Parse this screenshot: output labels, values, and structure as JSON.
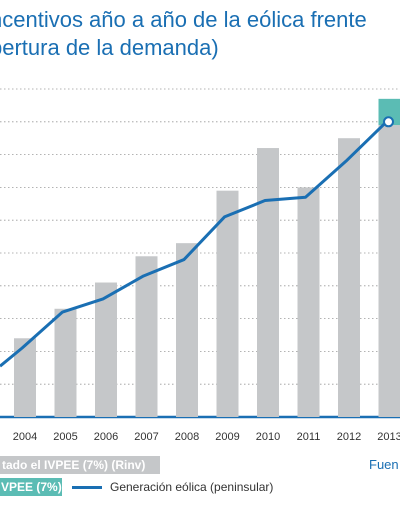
{
  "title": {
    "line1": "ncentivos año a año de la eólica frente",
    "line2": "bertura de la demanda)"
  },
  "legend": {
    "bar_label": "tado el IVPEE (7%) (Rinv)",
    "teal_label": "VPEE (7%)",
    "line_label": "Generación eólica (peninsular)",
    "source": "Fuen"
  },
  "colors": {
    "bar": "#c5c7c9",
    "teal": "#5bbcb4",
    "line": "#1a6fb3",
    "title": "#1a6fb3",
    "axis": "#1a6fb3",
    "grid": "#9a9a9a"
  },
  "chart_data": {
    "type": "bar",
    "categories": [
      "2004",
      "2005",
      "2006",
      "2007",
      "2008",
      "2009",
      "2010",
      "2011",
      "2012",
      "2013"
    ],
    "y_scale": "unlabeled (tick labels cropped)",
    "ylim": [
      0,
      100
    ],
    "gridlines": [
      0,
      10,
      20,
      30,
      40,
      50,
      60,
      70,
      80,
      90,
      100
    ],
    "bars": {
      "name": "tado el IVPEE (7%) (Rinv)",
      "values": [
        24,
        33,
        41,
        49,
        53,
        69,
        82,
        70,
        85,
        89
      ]
    },
    "bar_extension": {
      "name": "VPEE (7%)",
      "category": "2013",
      "values": [
        89,
        97
      ]
    },
    "line": {
      "name": "Generación eólica (peninsular)",
      "x_start_value": 15.5,
      "values": [
        21,
        32,
        36,
        43,
        48,
        61,
        66,
        67,
        78,
        90
      ]
    }
  }
}
